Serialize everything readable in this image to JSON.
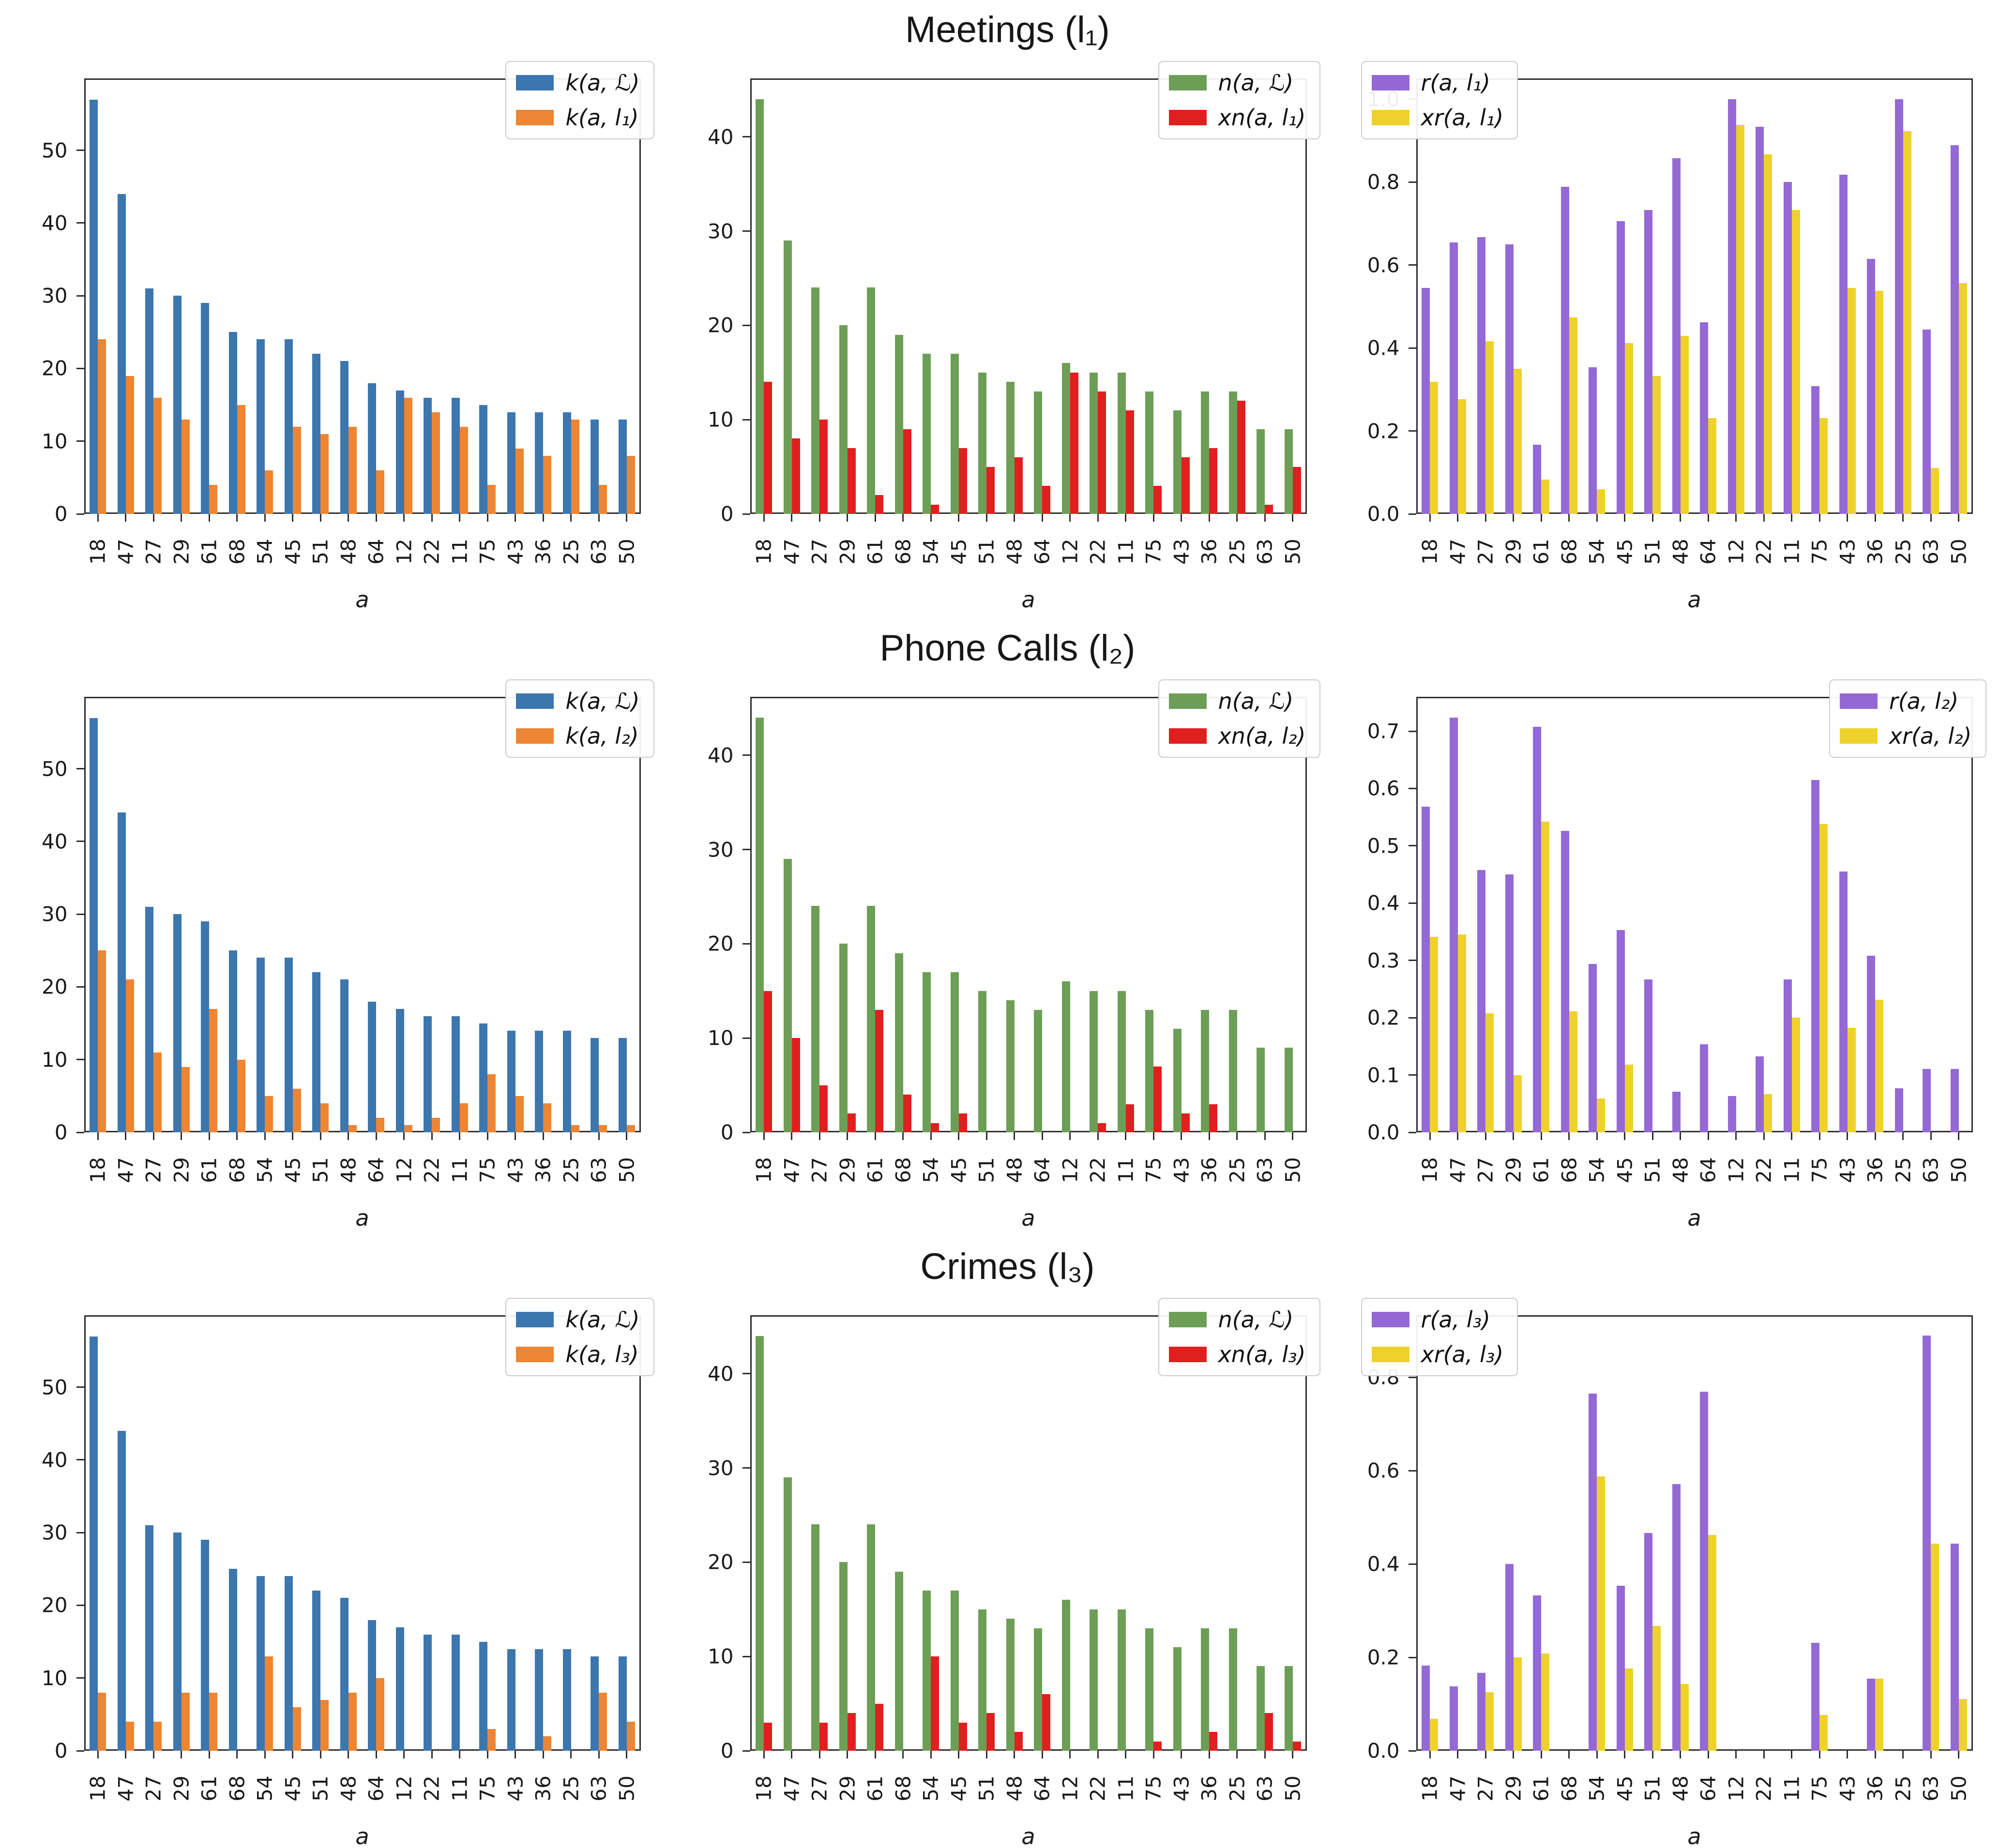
{
  "chart_data": {
    "type": "bar",
    "grid": false,
    "categories": [
      "18",
      "47",
      "27",
      "29",
      "61",
      "68",
      "54",
      "45",
      "51",
      "48",
      "64",
      "12",
      "22",
      "11",
      "75",
      "43",
      "36",
      "25",
      "63",
      "50"
    ],
    "xlabel": "a",
    "rows": [
      {
        "title": "Meetings (l₁)",
        "charts": [
          {
            "name": "meetings-counts-k",
            "yticks": [
              0,
              10,
              20,
              30,
              40,
              50
            ],
            "ymax": 59.9,
            "decimals": 0,
            "legend_pos": "right",
            "series": [
              {
                "name": "k(a, ℒ)",
                "color": "#3c76af",
                "values": [
                  57,
                  44,
                  31,
                  30,
                  29,
                  25,
                  24,
                  24,
                  22,
                  21,
                  18,
                  17,
                  16,
                  16,
                  15,
                  14,
                  14,
                  14,
                  13,
                  13
                ]
              },
              {
                "name": "k(a, l₁)",
                "color": "#ee8532",
                "values": [
                  24,
                  19,
                  16,
                  13,
                  4,
                  15,
                  6,
                  12,
                  11,
                  12,
                  6,
                  16,
                  14,
                  12,
                  4,
                  9,
                  8,
                  13,
                  4,
                  8
                ]
              }
            ]
          },
          {
            "name": "meetings-counts-n",
            "yticks": [
              0,
              10,
              20,
              30,
              40
            ],
            "ymax": 46.2,
            "decimals": 0,
            "legend_pos": "right",
            "series": [
              {
                "name": "n(a, ℒ)",
                "color": "#6d9e56",
                "values": [
                  44,
                  29,
                  24,
                  20,
                  24,
                  19,
                  17,
                  17,
                  15,
                  14,
                  13,
                  16,
                  15,
                  15,
                  13,
                  11,
                  13,
                  13,
                  9,
                  9
                ]
              },
              {
                "name": "xn(a, l₁)",
                "color": "#e01f1f",
                "values": [
                  14,
                  8,
                  10,
                  7,
                  2,
                  9,
                  1,
                  7,
                  5,
                  6,
                  3,
                  15,
                  13,
                  11,
                  3,
                  6,
                  7,
                  12,
                  1,
                  5
                ]
              }
            ]
          },
          {
            "name": "meetings-ratios",
            "yticks": [
              0,
              0.2,
              0.4,
              0.6,
              0.8,
              1.0
            ],
            "ymax": 1.05,
            "decimals": 1,
            "legend_pos": "left",
            "series": [
              {
                "name": "r(a, l₁)",
                "color": "#9469d5",
                "values": [
                  0.545,
                  0.655,
                  0.667,
                  0.65,
                  0.167,
                  0.789,
                  0.353,
                  0.706,
                  0.733,
                  0.857,
                  0.462,
                  1.0,
                  0.933,
                  0.8,
                  0.308,
                  0.818,
                  0.615,
                  1.0,
                  0.444,
                  0.889
                ]
              },
              {
                "name": "xr(a, l₁)",
                "color": "#eed22b",
                "values": [
                  0.318,
                  0.276,
                  0.417,
                  0.35,
                  0.083,
                  0.474,
                  0.059,
                  0.412,
                  0.333,
                  0.429,
                  0.231,
                  0.938,
                  0.867,
                  0.733,
                  0.231,
                  0.545,
                  0.538,
                  0.923,
                  0.111,
                  0.556
                ]
              }
            ]
          }
        ]
      },
      {
        "title": "Phone Calls (l₂)",
        "charts": [
          {
            "name": "phonecalls-counts-k",
            "yticks": [
              0,
              10,
              20,
              30,
              40,
              50
            ],
            "ymax": 59.9,
            "decimals": 0,
            "legend_pos": "right",
            "series": [
              {
                "name": "k(a, ℒ)",
                "color": "#3c76af",
                "values": [
                  57,
                  44,
                  31,
                  30,
                  29,
                  25,
                  24,
                  24,
                  22,
                  21,
                  18,
                  17,
                  16,
                  16,
                  15,
                  14,
                  14,
                  14,
                  13,
                  13
                ]
              },
              {
                "name": "k(a, l₂)",
                "color": "#ee8532",
                "values": [
                  25,
                  21,
                  11,
                  9,
                  17,
                  10,
                  5,
                  6,
                  4,
                  1,
                  2,
                  1,
                  2,
                  4,
                  8,
                  5,
                  4,
                  1,
                  1,
                  1
                ]
              }
            ]
          },
          {
            "name": "phonecalls-counts-n",
            "yticks": [
              0,
              10,
              20,
              30,
              40
            ],
            "ymax": 46.2,
            "decimals": 0,
            "legend_pos": "right",
            "series": [
              {
                "name": "n(a, ℒ)",
                "color": "#6d9e56",
                "values": [
                  44,
                  29,
                  24,
                  20,
                  24,
                  19,
                  17,
                  17,
                  15,
                  14,
                  13,
                  16,
                  15,
                  15,
                  13,
                  11,
                  13,
                  13,
                  9,
                  9
                ]
              },
              {
                "name": "xn(a, l₂)",
                "color": "#e01f1f",
                "values": [
                  15,
                  10,
                  5,
                  2,
                  13,
                  4,
                  1,
                  2,
                  0,
                  0,
                  0,
                  0,
                  1,
                  3,
                  7,
                  2,
                  3,
                  0,
                  0,
                  0
                ]
              }
            ]
          },
          {
            "name": "phonecalls-ratios",
            "yticks": [
              0,
              0.1,
              0.2,
              0.3,
              0.4,
              0.5,
              0.6,
              0.7
            ],
            "ymax": 0.76,
            "decimals": 1,
            "legend_pos": "right",
            "series": [
              {
                "name": "r(a, l₂)",
                "color": "#9469d5",
                "values": [
                  0.568,
                  0.724,
                  0.458,
                  0.45,
                  0.708,
                  0.526,
                  0.294,
                  0.353,
                  0.267,
                  0.071,
                  0.154,
                  0.063,
                  0.133,
                  0.267,
                  0.615,
                  0.455,
                  0.308,
                  0.077,
                  0.111,
                  0.111
                ]
              },
              {
                "name": "xr(a, l₂)",
                "color": "#eed22b",
                "values": [
                  0.341,
                  0.345,
                  0.208,
                  0.1,
                  0.542,
                  0.211,
                  0.059,
                  0.118,
                  0,
                  0,
                  0,
                  0,
                  0.067,
                  0.2,
                  0.538,
                  0.182,
                  0.231,
                  0,
                  0,
                  0
                ]
              }
            ]
          }
        ]
      },
      {
        "title": "Crimes (l₃)",
        "charts": [
          {
            "name": "crimes-counts-k",
            "yticks": [
              0,
              10,
              20,
              30,
              40,
              50
            ],
            "ymax": 59.9,
            "decimals": 0,
            "legend_pos": "right",
            "series": [
              {
                "name": "k(a, ℒ)",
                "color": "#3c76af",
                "values": [
                  57,
                  44,
                  31,
                  30,
                  29,
                  25,
                  24,
                  24,
                  22,
                  21,
                  18,
                  17,
                  16,
                  16,
                  15,
                  14,
                  14,
                  14,
                  13,
                  13
                ]
              },
              {
                "name": "k(a, l₃)",
                "color": "#ee8532",
                "values": [
                  8,
                  4,
                  4,
                  8,
                  8,
                  0,
                  13,
                  6,
                  7,
                  8,
                  10,
                  0,
                  0,
                  0,
                  3,
                  0,
                  2,
                  0,
                  8,
                  4
                ]
              }
            ]
          },
          {
            "name": "crimes-counts-n",
            "yticks": [
              0,
              10,
              20,
              30,
              40
            ],
            "ymax": 46.2,
            "decimals": 0,
            "legend_pos": "right",
            "series": [
              {
                "name": "n(a, ℒ)",
                "color": "#6d9e56",
                "values": [
                  44,
                  29,
                  24,
                  20,
                  24,
                  19,
                  17,
                  17,
                  15,
                  14,
                  13,
                  16,
                  15,
                  15,
                  13,
                  11,
                  13,
                  13,
                  9,
                  9
                ]
              },
              {
                "name": "xn(a, l₃)",
                "color": "#e01f1f",
                "values": [
                  3,
                  0,
                  3,
                  4,
                  5,
                  0,
                  10,
                  3,
                  4,
                  2,
                  6,
                  0,
                  0,
                  0,
                  1,
                  0,
                  2,
                  0,
                  4,
                  1
                ]
              }
            ]
          },
          {
            "name": "crimes-ratios",
            "yticks": [
              0,
              0.2,
              0.4,
              0.6,
              0.8
            ],
            "ymax": 0.933,
            "decimals": 1,
            "legend_pos": "left",
            "series": [
              {
                "name": "r(a, l₃)",
                "color": "#9469d5",
                "values": [
                  0.182,
                  0.138,
                  0.167,
                  0.4,
                  0.333,
                  0,
                  0.765,
                  0.353,
                  0.467,
                  0.571,
                  0.769,
                  0,
                  0,
                  0,
                  0.231,
                  0,
                  0.154,
                  0,
                  0.889,
                  0.444
                ]
              },
              {
                "name": "xr(a, l₃)",
                "color": "#eed22b",
                "values": [
                  0.068,
                  0,
                  0.125,
                  0.2,
                  0.208,
                  0,
                  0.588,
                  0.176,
                  0.267,
                  0.143,
                  0.462,
                  0,
                  0,
                  0,
                  0.077,
                  0,
                  0.154,
                  0,
                  0.444,
                  0.111
                ]
              }
            ]
          }
        ]
      }
    ]
  }
}
